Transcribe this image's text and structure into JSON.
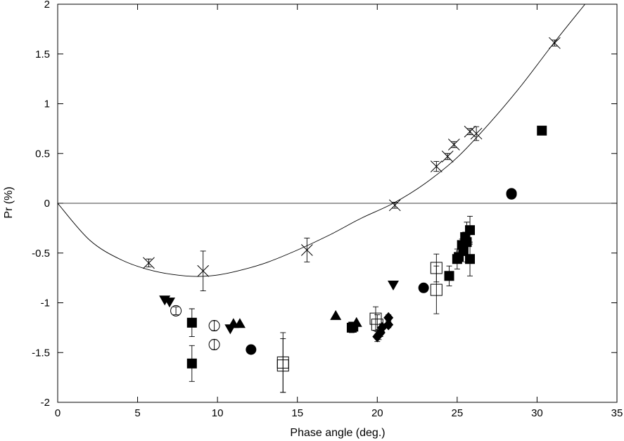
{
  "chart_data": {
    "type": "scatter",
    "xlabel": "Phase angle (deg.)",
    "ylabel": "Pr (%)",
    "xlim": [
      0,
      35
    ],
    "ylim": [
      -2,
      2
    ],
    "xticks": [
      "0",
      "5",
      "10",
      "15",
      "20",
      "25",
      "30",
      "35"
    ],
    "yticks": [
      "-2",
      "-1.5",
      "-1",
      "-0.5",
      "0",
      "0.5",
      "1",
      "1.5",
      "2"
    ],
    "grid": false,
    "legend": "none",
    "reference_line_y": 0,
    "fit_curve": [
      [
        0,
        0.0
      ],
      [
        2,
        -0.37
      ],
      [
        4,
        -0.57
      ],
      [
        6,
        -0.68
      ],
      [
        8,
        -0.73
      ],
      [
        9.5,
        -0.73
      ],
      [
        11,
        -0.69
      ],
      [
        13,
        -0.6
      ],
      [
        15,
        -0.47
      ],
      [
        17,
        -0.32
      ],
      [
        19,
        -0.15
      ],
      [
        21,
        0.0
      ],
      [
        23,
        0.2
      ],
      [
        25,
        0.46
      ],
      [
        27,
        0.8
      ],
      [
        29,
        1.18
      ],
      [
        31,
        1.6
      ],
      [
        33,
        2.0
      ]
    ],
    "series": [
      {
        "marker": "cross",
        "points": [
          {
            "x": 5.7,
            "y": -0.6,
            "err": 0.04
          },
          {
            "x": 9.1,
            "y": -0.68,
            "err": 0.2
          },
          {
            "x": 15.6,
            "y": -0.47,
            "err": 0.12
          },
          {
            "x": 21.1,
            "y": -0.02,
            "err": 0.03
          },
          {
            "x": 23.7,
            "y": 0.37,
            "err": 0.05
          },
          {
            "x": 24.4,
            "y": 0.47,
            "err": 0.03
          },
          {
            "x": 24.8,
            "y": 0.59,
            "err": 0.03
          },
          {
            "x": 25.8,
            "y": 0.72,
            "err": 0.03
          },
          {
            "x": 26.2,
            "y": 0.7,
            "err": 0.07
          },
          {
            "x": 31.1,
            "y": 1.61,
            "err": 0.03
          }
        ]
      },
      {
        "marker": "filled-square",
        "points": [
          {
            "x": 8.4,
            "y": -1.2,
            "err": 0.14
          },
          {
            "x": 8.4,
            "y": -1.61,
            "err": 0.18
          },
          {
            "x": 18.4,
            "y": -1.25,
            "err": 0.05
          },
          {
            "x": 18.5,
            "y": -1.24,
            "err": 0.04
          },
          {
            "x": 24.5,
            "y": -0.73,
            "err": 0.1
          },
          {
            "x": 25.0,
            "y": -0.56,
            "err": 0.1
          },
          {
            "x": 25.1,
            "y": -0.54,
            "err": 0.06
          },
          {
            "x": 25.3,
            "y": -0.42,
            "err": 0.06
          },
          {
            "x": 25.4,
            "y": -0.48,
            "err": 0.04
          },
          {
            "x": 25.5,
            "y": -0.34,
            "err": 0.05
          },
          {
            "x": 25.6,
            "y": -0.39,
            "err": 0.2
          },
          {
            "x": 25.8,
            "y": -0.27,
            "err": 0.14
          },
          {
            "x": 25.8,
            "y": -0.56,
            "err": 0.17
          },
          {
            "x": 30.3,
            "y": 0.73,
            "err": 0
          }
        ]
      },
      {
        "marker": "open-square",
        "points": [
          {
            "x": 14.1,
            "y": -1.6,
            "err": 0.3
          },
          {
            "x": 14.1,
            "y": -1.63,
            "err": 0.27
          },
          {
            "x": 19.9,
            "y": -1.16,
            "err": 0.12
          },
          {
            "x": 20.0,
            "y": -1.22,
            "err": 0.1
          },
          {
            "x": 23.7,
            "y": -0.65,
            "err": 0.14
          },
          {
            "x": 23.7,
            "y": -0.87,
            "err": 0.24
          }
        ]
      },
      {
        "marker": "open-circle",
        "points": [
          {
            "x": 7.4,
            "y": -1.08,
            "err": 0.04
          },
          {
            "x": 9.8,
            "y": -1.23,
            "err": 0.05
          },
          {
            "x": 9.8,
            "y": -1.42,
            "err": 0.05
          }
        ]
      },
      {
        "marker": "filled-circle",
        "points": [
          {
            "x": 12.1,
            "y": -1.47,
            "err": 0
          },
          {
            "x": 22.9,
            "y": -0.85,
            "err": 0
          },
          {
            "x": 28.4,
            "y": 0.1,
            "err": 0
          },
          {
            "x": 28.4,
            "y": 0.09,
            "err": 0
          }
        ]
      },
      {
        "marker": "filled-diamond",
        "points": [
          {
            "x": 20.0,
            "y": -1.34,
            "err": 0.05
          },
          {
            "x": 20.1,
            "y": -1.32,
            "err": 0.05
          },
          {
            "x": 20.2,
            "y": -1.3,
            "err": 0.04
          },
          {
            "x": 20.3,
            "y": -1.25,
            "err": 0.04
          },
          {
            "x": 20.7,
            "y": -1.22,
            "err": 0.03
          },
          {
            "x": 20.7,
            "y": -1.15,
            "err": 0.03
          }
        ]
      },
      {
        "marker": "filled-triangle-up",
        "points": [
          {
            "x": 11.0,
            "y": -1.21,
            "err": 0
          },
          {
            "x": 11.4,
            "y": -1.21,
            "err": 0
          },
          {
            "x": 17.4,
            "y": -1.13,
            "err": 0
          },
          {
            "x": 18.7,
            "y": -1.2,
            "err": 0
          }
        ]
      },
      {
        "marker": "filled-triangle-down",
        "points": [
          {
            "x": 6.7,
            "y": -0.97,
            "err": 0
          },
          {
            "x": 7.0,
            "y": -0.99,
            "err": 0
          },
          {
            "x": 10.8,
            "y": -1.26,
            "err": 0
          },
          {
            "x": 21.0,
            "y": -0.82,
            "err": 0
          }
        ]
      }
    ]
  }
}
